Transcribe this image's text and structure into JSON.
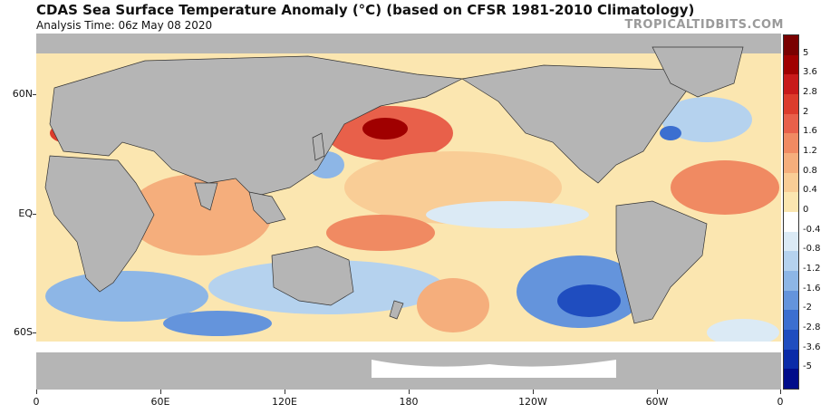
{
  "header": {
    "title": "CDAS Sea Surface Temperature Anomaly (°C) (based on CFSR 1981-2010 Climatology)",
    "analysis_time": "Analysis Time: 06z May 08 2020",
    "brand": "TROPICALTIDBITS.COM"
  },
  "axes": {
    "latitude_labels": [
      "60N",
      "EQ",
      "60S"
    ],
    "longitude_labels": [
      "0",
      "60E",
      "120E",
      "180",
      "120W",
      "60W",
      "0"
    ]
  },
  "colorbar": {
    "labels": [
      "5",
      "3.6",
      "2.8",
      "2",
      "1.6",
      "1.2",
      "0.8",
      "0.4",
      "0",
      "-0.4",
      "-0.8",
      "-1.2",
      "-1.6",
      "-2",
      "-2.8",
      "-3.6",
      "-5"
    ],
    "colors": [
      "#7a0000",
      "#a00000",
      "#c81a1a",
      "#dc3c2c",
      "#e8604a",
      "#f08a62",
      "#f5ae7c",
      "#f9cd96",
      "#fbe6b0",
      "#ffffff",
      "#dbeaf5",
      "#b5d2ee",
      "#8db6e6",
      "#6494dc",
      "#3c6fd0",
      "#1f4dbf",
      "#0a2ba8",
      "#000c8a"
    ]
  },
  "legend": {
    "land_color": "#b5b5b5",
    "ice_color": "#ffffff",
    "warm_color": "#f5ae7c",
    "cool_color": "#8db6e6"
  }
}
